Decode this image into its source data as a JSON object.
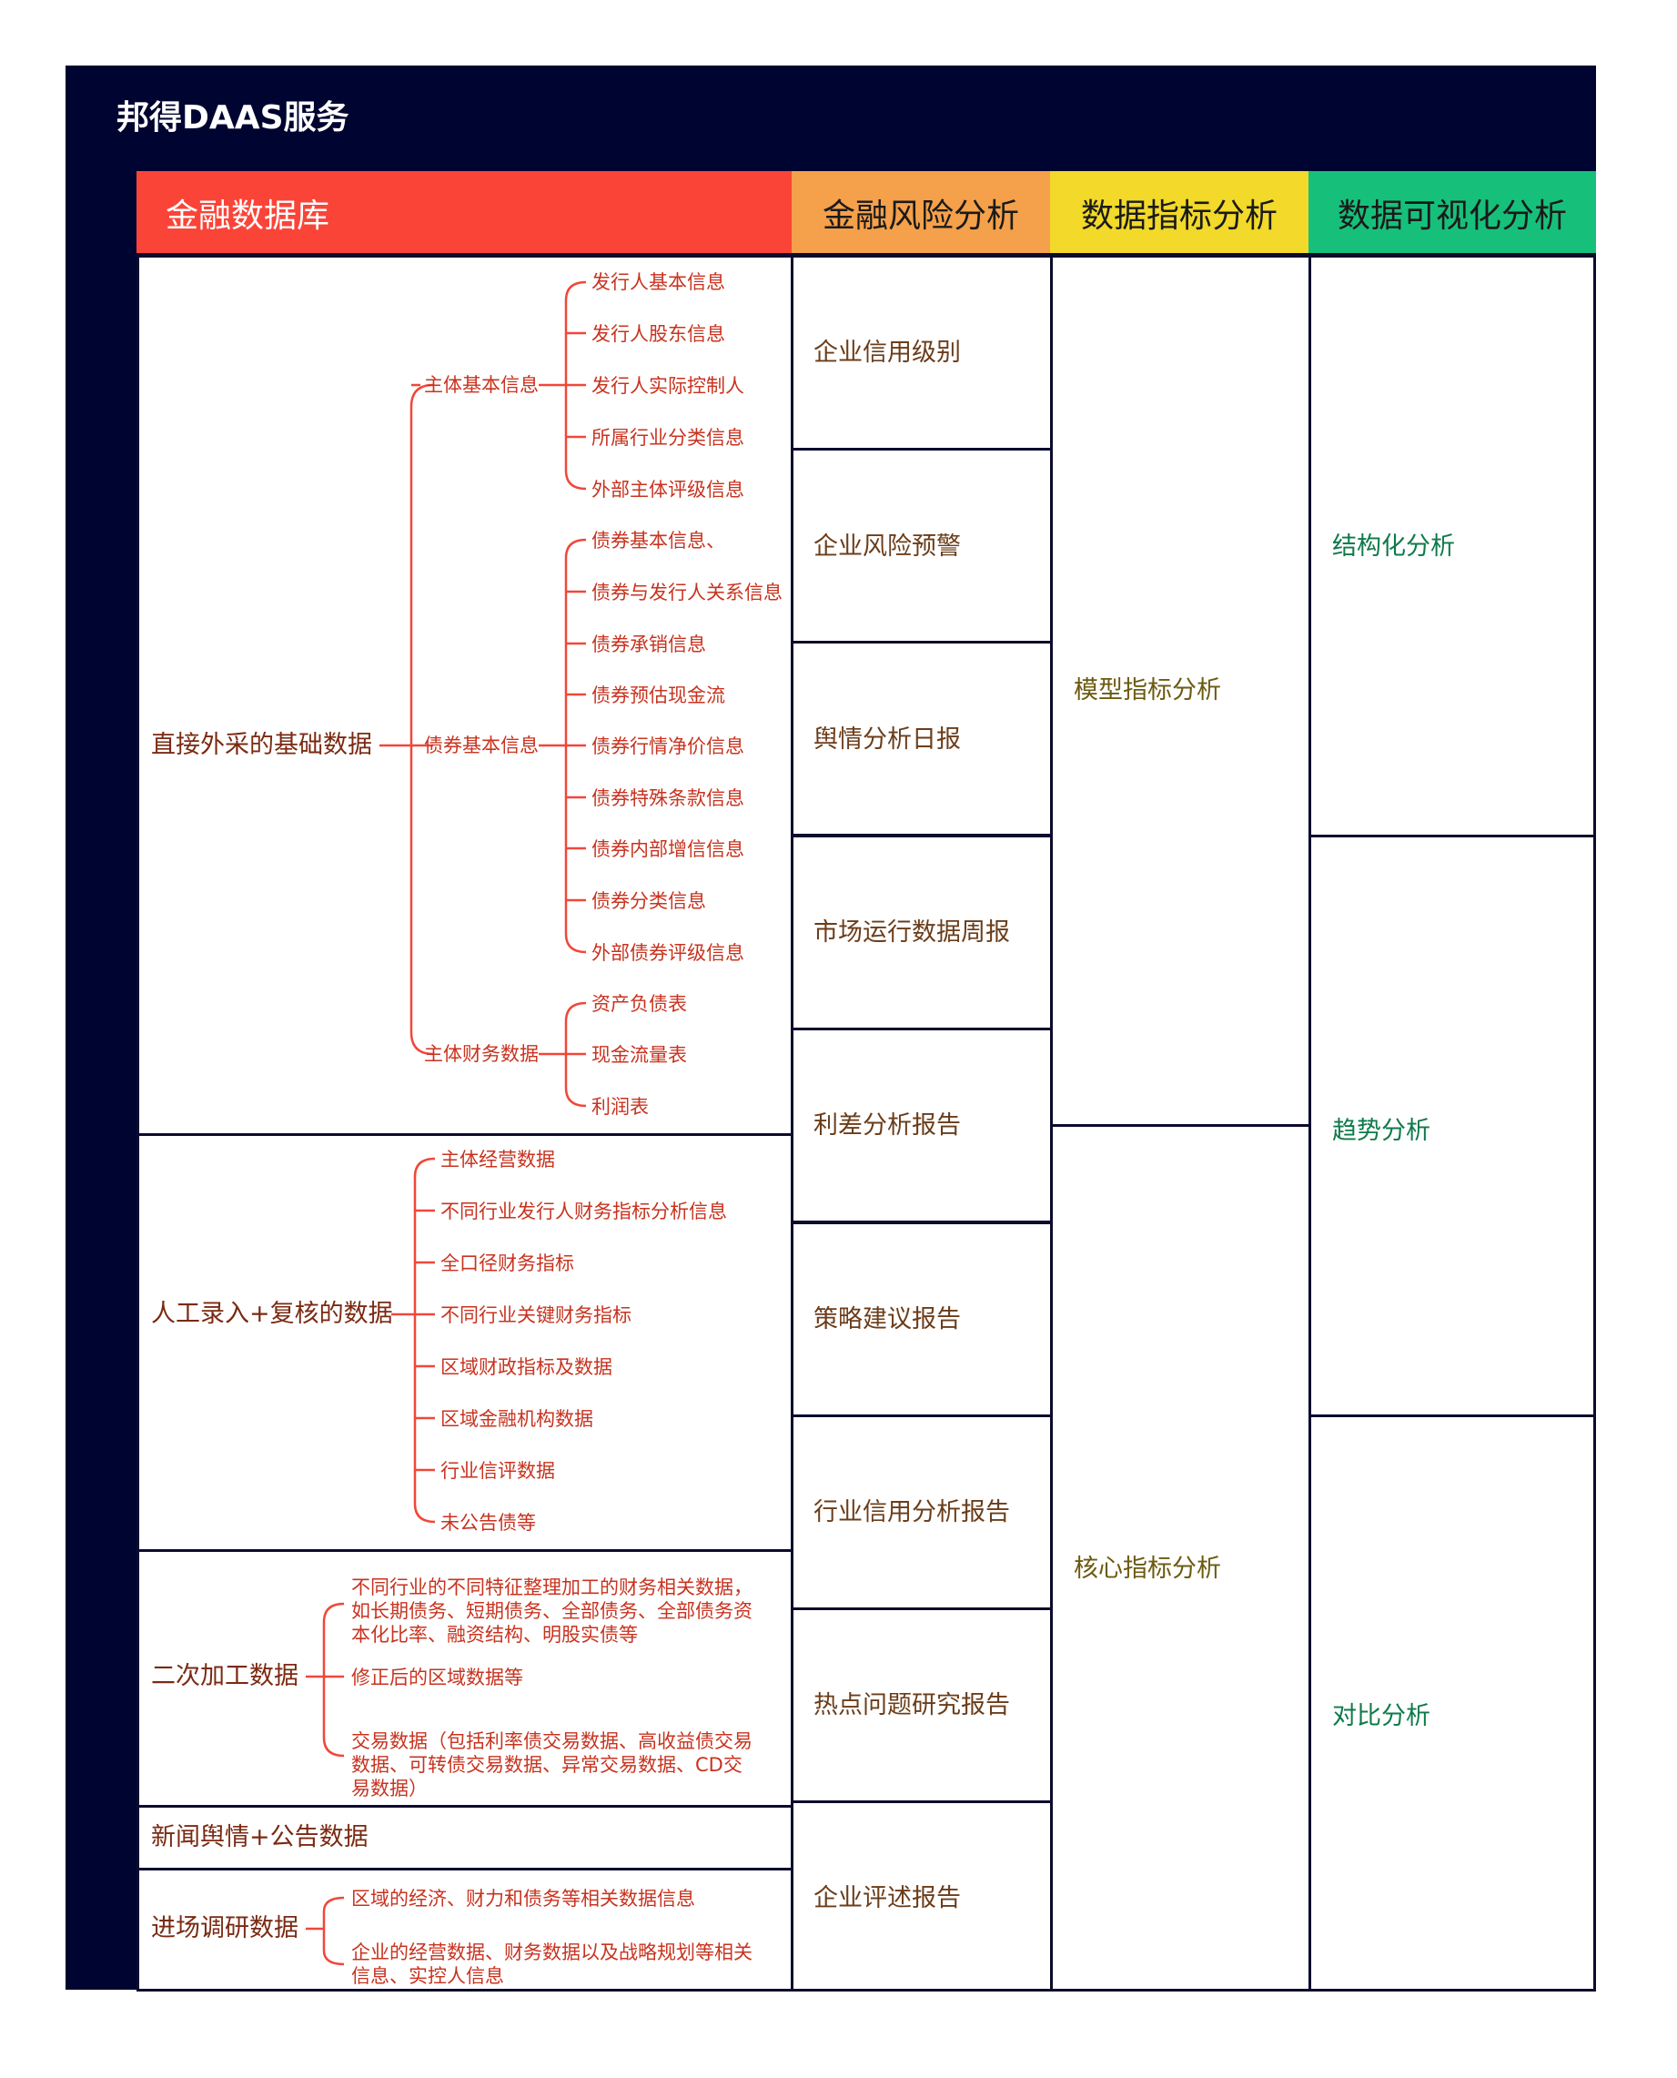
{
  "title": "邦得DAAS服务",
  "headers": {
    "database": "金融数据库",
    "risk": "金融风险分析",
    "indicator": "数据指标分析",
    "visual": "数据可视化分析"
  },
  "colors": {
    "band": "#000430",
    "database_header": "#fb4438",
    "risk_header": "#f5a04a",
    "indicator_header": "#f2d92a",
    "visual_header": "#16c07b",
    "tree_line": "#f0473a"
  },
  "database": {
    "direct": {
      "label": "直接外采的基础数据",
      "groups": [
        {
          "label": "主体基本信息",
          "items": [
            "发行人基本信息",
            "发行人股东信息",
            "发行人实际控制人",
            "所属行业分类信息",
            "外部主体评级信息"
          ]
        },
        {
          "label": "债券基本信息",
          "items": [
            "债券基本信息、",
            "债券与发行人关系信息",
            "债券承销信息",
            "债券预估现金流",
            "债券行情净价信息",
            "债券特殊条款信息",
            "债券内部增信信息",
            "债券分类信息",
            "外部债券评级信息"
          ]
        },
        {
          "label": "主体财务数据",
          "items": [
            "资产负债表",
            "现金流量表",
            "利润表"
          ]
        }
      ]
    },
    "manual": {
      "label": "人工录入+复核的数据",
      "items": [
        "主体经营数据",
        "不同行业发行人财务指标分析信息",
        "全口径财务指标",
        "不同行业关键财务指标",
        "区域财政指标及数据",
        "区域金融机构数据",
        "行业信评数据",
        "未公告债等"
      ]
    },
    "secondary": {
      "label": "二次加工数据",
      "items": [
        "不同行业的不同特征整理加工的财务相关数据，如长期债务、短期债务、全部债务、全部债务资本化比率、融资结构、明股实债等",
        "修正后的区域数据等",
        "交易数据（包括利率债交易数据、高收益债交易数据、可转债交易数据、异常交易数据、CD交易数据）"
      ]
    },
    "news": {
      "label": "新闻舆情+公告数据"
    },
    "survey": {
      "label": "进场调研数据",
      "items": [
        "区域的经济、财力和债务等相关数据信息",
        "企业的经营数据、财务数据以及战略规划等相关信息、实控人信息"
      ]
    }
  },
  "risk_items": [
    "企业信用级别",
    "企业风险预警",
    "舆情分析日报",
    "市场运行数据周报",
    "利差分析报告",
    "策略建议报告",
    "行业信用分析报告",
    "热点问题研究报告",
    "企业评述报告"
  ],
  "indicator_items": [
    "模型指标分析",
    "核心指标分析"
  ],
  "visual_items": [
    "结构化分析",
    "趋势分析",
    "对比分析"
  ]
}
